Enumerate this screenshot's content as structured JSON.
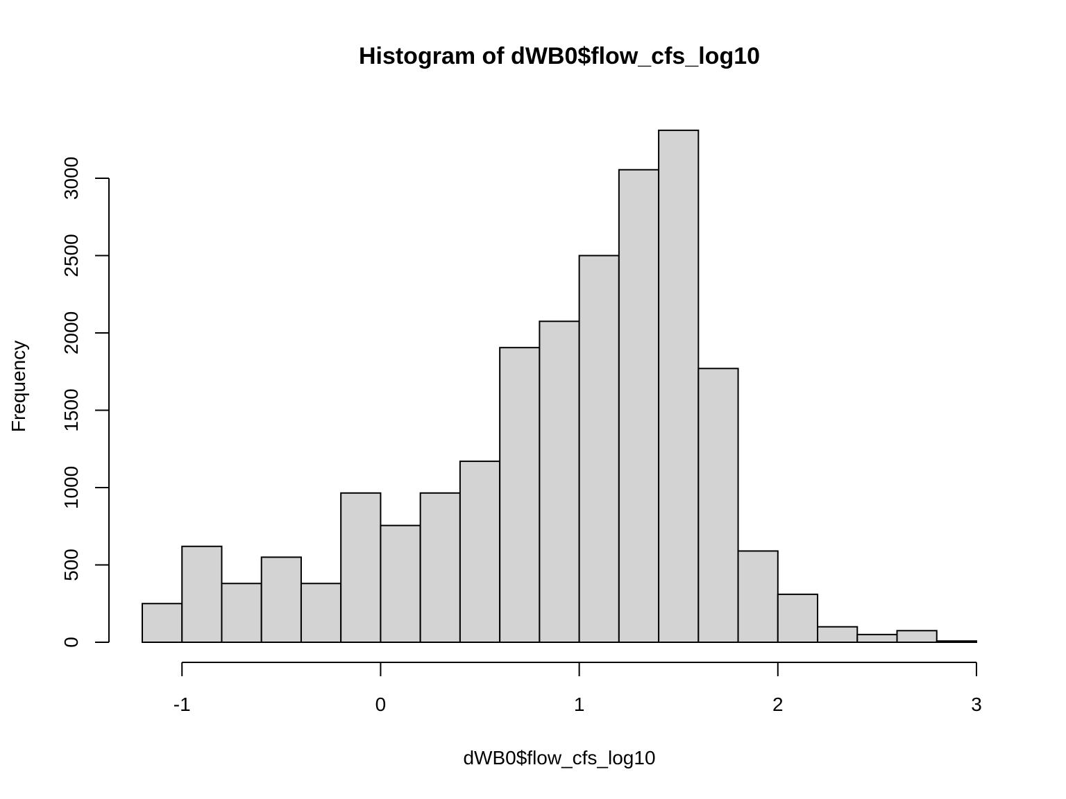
{
  "chart_data": {
    "type": "bar",
    "title": "Histogram of dWB0$flow_cfs_log10",
    "xlabel": "dWB0$flow_cfs_log10",
    "ylabel": "Frequency",
    "xlim": [
      -1.2,
      3.0
    ],
    "ylim": [
      0,
      3300
    ],
    "x_ticks": [
      -1,
      0,
      1,
      2,
      3
    ],
    "y_ticks": [
      0,
      500,
      1000,
      1500,
      2000,
      2500,
      3000
    ],
    "bins": [
      {
        "x0": -1.2,
        "x1": -1.0,
        "value": 250
      },
      {
        "x0": -1.0,
        "x1": -0.8,
        "value": 620
      },
      {
        "x0": -0.8,
        "x1": -0.6,
        "value": 380
      },
      {
        "x0": -0.6,
        "x1": -0.4,
        "value": 550
      },
      {
        "x0": -0.4,
        "x1": -0.2,
        "value": 380
      },
      {
        "x0": -0.2,
        "x1": 0.0,
        "value": 965
      },
      {
        "x0": 0.0,
        "x1": 0.2,
        "value": 755
      },
      {
        "x0": 0.2,
        "x1": 0.4,
        "value": 965
      },
      {
        "x0": 0.4,
        "x1": 0.6,
        "value": 1170
      },
      {
        "x0": 0.6,
        "x1": 0.8,
        "value": 1905
      },
      {
        "x0": 0.8,
        "x1": 1.0,
        "value": 2075
      },
      {
        "x0": 1.0,
        "x1": 1.2,
        "value": 2500
      },
      {
        "x0": 1.2,
        "x1": 1.4,
        "value": 3055
      },
      {
        "x0": 1.4,
        "x1": 1.6,
        "value": 3310
      },
      {
        "x0": 1.6,
        "x1": 1.8,
        "value": 1770
      },
      {
        "x0": 1.8,
        "x1": 2.0,
        "value": 590
      },
      {
        "x0": 2.0,
        "x1": 2.2,
        "value": 310
      },
      {
        "x0": 2.2,
        "x1": 2.4,
        "value": 100
      },
      {
        "x0": 2.4,
        "x1": 2.6,
        "value": 50
      },
      {
        "x0": 2.6,
        "x1": 2.8,
        "value": 75
      },
      {
        "x0": 2.8,
        "x1": 3.0,
        "value": 8
      }
    ],
    "colors": {
      "bar_fill": "#d3d3d3",
      "bar_stroke": "#000000",
      "background": "#ffffff"
    },
    "grid": false,
    "legend": "none"
  }
}
